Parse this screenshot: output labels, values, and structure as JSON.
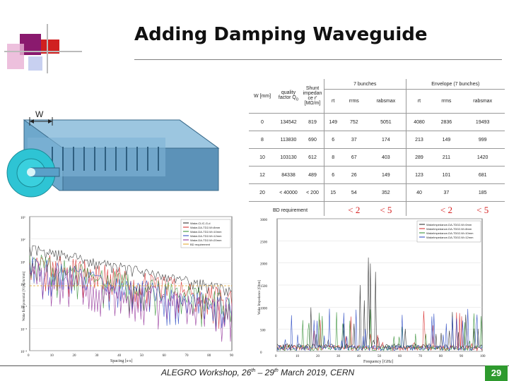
{
  "slide": {
    "title": "Adding Damping Waveguide",
    "footer_text": "ALEGRO Workshop, 26th – 29th March 2019, CERN",
    "footer_parts": {
      "a": "ALEGRO Workshop, 26",
      "b": "th",
      "c": " – 29",
      "d": "th",
      "e": " March 2019, CERN"
    },
    "page_number": "29",
    "accent_colors": {
      "magenta": "#8a1a6e",
      "red": "#d02020",
      "blue": "#3a4aa8",
      "green": "#2e9a2e"
    }
  },
  "figure_label": "W",
  "table": {
    "headers": {
      "w": "W [mm]",
      "quality": "quality factor Q",
      "quality_sub": "0",
      "shunt_lines": [
        "Shunt",
        "impedan",
        "ce r'",
        "[MΩ/m]"
      ],
      "group1": "7 bunches",
      "group2": "Envelope (7 bunches)",
      "sub": [
        "rt",
        "rrms",
        "rabsmax",
        "rt",
        "rrms",
        "rabsmax"
      ]
    },
    "rows": [
      [
        "0",
        "134542",
        "819",
        "149",
        "752",
        "5051",
        "4080",
        "2836",
        "19493"
      ],
      [
        "8",
        "113830",
        "690",
        "6",
        "37",
        "174",
        "213",
        "149",
        "999"
      ],
      [
        "10",
        "103130",
        "612",
        "8",
        "67",
        "403",
        "289",
        "211",
        "1420"
      ],
      [
        "12",
        "84338",
        "489",
        "6",
        "26",
        "149",
        "123",
        "101",
        "681"
      ],
      [
        "20",
        "< 40000",
        "< 200",
        "15",
        "54",
        "352",
        "40",
        "37",
        "185"
      ]
    ],
    "bd_requirement_label": "BD requirement",
    "requirements": [
      "< 2",
      "< 5",
      "< 2",
      "< 5"
    ]
  },
  "left_plot": {
    "ylabel": "Wake field potential [V/pC/m/mm]",
    "xlabel": "Spacing [s-s]",
    "xticks": [
      "0",
      "10",
      "20",
      "30",
      "40",
      "50",
      "60",
      "70",
      "80",
      "90"
    ],
    "yticks": [
      "10³",
      "10²",
      "10¹",
      "10⁰",
      "10⁻¹",
      "10⁻²",
      "10⁻³"
    ],
    "legend": [
      "Wake-CLIC-G-d",
      "Wake-DA-TD2-W=8mm",
      "Wake-DA-TD2-W=10mm",
      "Wake-DA-TD2-W=12mm",
      "Wake-DA-TD2-W=20mm",
      "BD requirement"
    ],
    "colors": [
      "#222222",
      "#d62020",
      "#2a8a2a",
      "#2040c0",
      "#8a2090",
      "#e0a020"
    ]
  },
  "right_plot": {
    "ylabel": "Wake Impedance [Ohm]",
    "xlabel": "Frequency [GHz]",
    "xticks": [
      "0",
      "10",
      "20",
      "30",
      "40",
      "50",
      "60",
      "70",
      "80",
      "90",
      "100"
    ],
    "yticks": [
      "3000",
      "2500",
      "2000",
      "1500",
      "1000",
      "500",
      "0"
    ],
    "legend": [
      "WakeImpedance-DA-TD02-W=0mm",
      "WakeImpedance-DA-TD02-W=8mm",
      "WakeImpedance-DA-TD02-W=10mm",
      "WakeImpedance-DA-TD02-W=12mm"
    ],
    "colors": [
      "#222222",
      "#d62020",
      "#2a8a2a",
      "#2040c0"
    ]
  }
}
